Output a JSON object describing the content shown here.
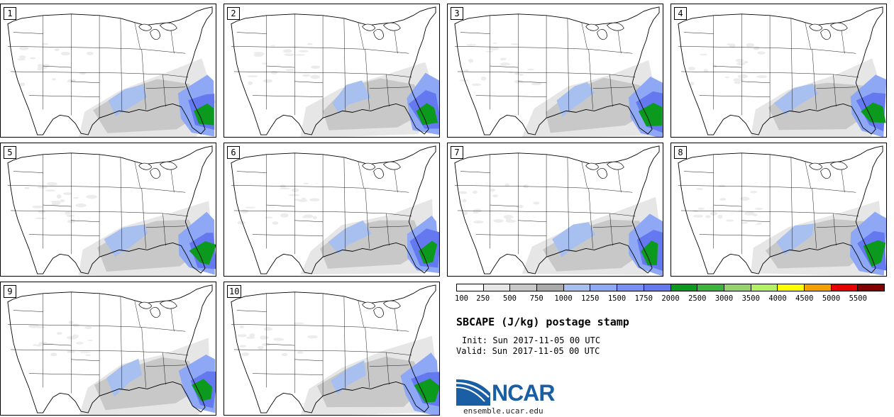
{
  "title": "SBCAPE (J/kg) postage stamp",
  "init_text": "Init: Sun 2017-11-05 00 UTC",
  "valid_text": "Valid: Sun 2017-11-05 00 UTC",
  "logo_text": "NCAR",
  "logo_url": "ensemble.ucar.edu",
  "colors": {
    "border": "#000000",
    "logo_blue": "#1a5fa3"
  },
  "colorbar": {
    "labels": [
      "100",
      "250",
      "500",
      "750",
      "1000",
      "1250",
      "1500",
      "1750",
      "2000",
      "2500",
      "3000",
      "3500",
      "4000",
      "4500",
      "5000",
      "5500"
    ],
    "colors": [
      "#ffffff",
      "#e6e6e6",
      "#c8c8c8",
      "#aaaaaa",
      "#a8c0f0",
      "#8ea8f5",
      "#7890f5",
      "#6478f0",
      "#0c9a1e",
      "#3cb43c",
      "#96d26e",
      "#b4f064",
      "#ffff00",
      "#f5a000",
      "#e60000",
      "#820000"
    ]
  },
  "panels": [
    {
      "label": "1",
      "member": 1
    },
    {
      "label": "2",
      "member": 2
    },
    {
      "label": "3",
      "member": 3
    },
    {
      "label": "4",
      "member": 4
    },
    {
      "label": "5",
      "member": 5
    },
    {
      "label": "6",
      "member": 6
    },
    {
      "label": "7",
      "member": 7
    },
    {
      "label": "8",
      "member": 8
    },
    {
      "label": "9",
      "member": 9
    },
    {
      "label": "10",
      "member": 10
    }
  ]
}
